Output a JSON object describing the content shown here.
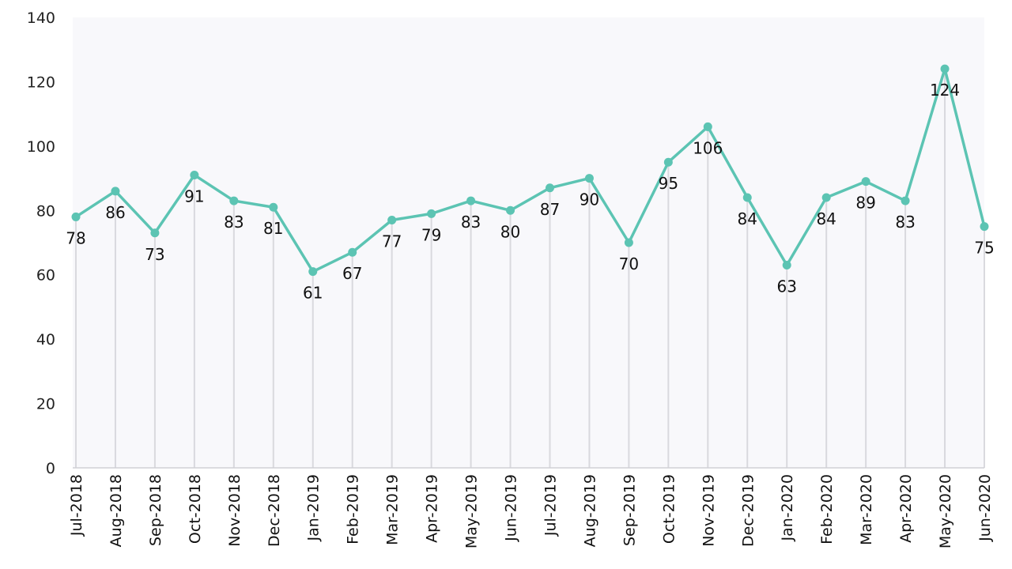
{
  "chart_data": {
    "type": "line",
    "categories": [
      "Jul-2018",
      "Aug-2018",
      "Sep-2018",
      "Oct-2018",
      "Nov-2018",
      "Dec-2018",
      "Jan-2019",
      "Feb-2019",
      "Mar-2019",
      "Apr-2019",
      "May-2019",
      "Jun-2019",
      "Jul-2019",
      "Aug-2019",
      "Sep-2019",
      "Oct-2019",
      "Nov-2019",
      "Dec-2019",
      "Jan-2020",
      "Feb-2020",
      "Mar-2020",
      "Apr-2020",
      "May-2020",
      "Jun-2020"
    ],
    "series": [
      {
        "values": [
          78,
          86,
          73,
          91,
          83,
          81,
          61,
          67,
          77,
          79,
          83,
          80,
          87,
          90,
          70,
          95,
          106,
          84,
          63,
          84,
          89,
          83,
          124,
          75
        ]
      }
    ],
    "ylim": [
      0,
      140
    ],
    "yticks": [
      0,
      20,
      40,
      60,
      80,
      100,
      120,
      140
    ],
    "grid": "vertical drop lines",
    "colors": {
      "line": "#5cc4b3",
      "marker": "#5cc4b3",
      "plot_background": "#f8f8fb",
      "drop_line": "#d9d9de"
    }
  }
}
